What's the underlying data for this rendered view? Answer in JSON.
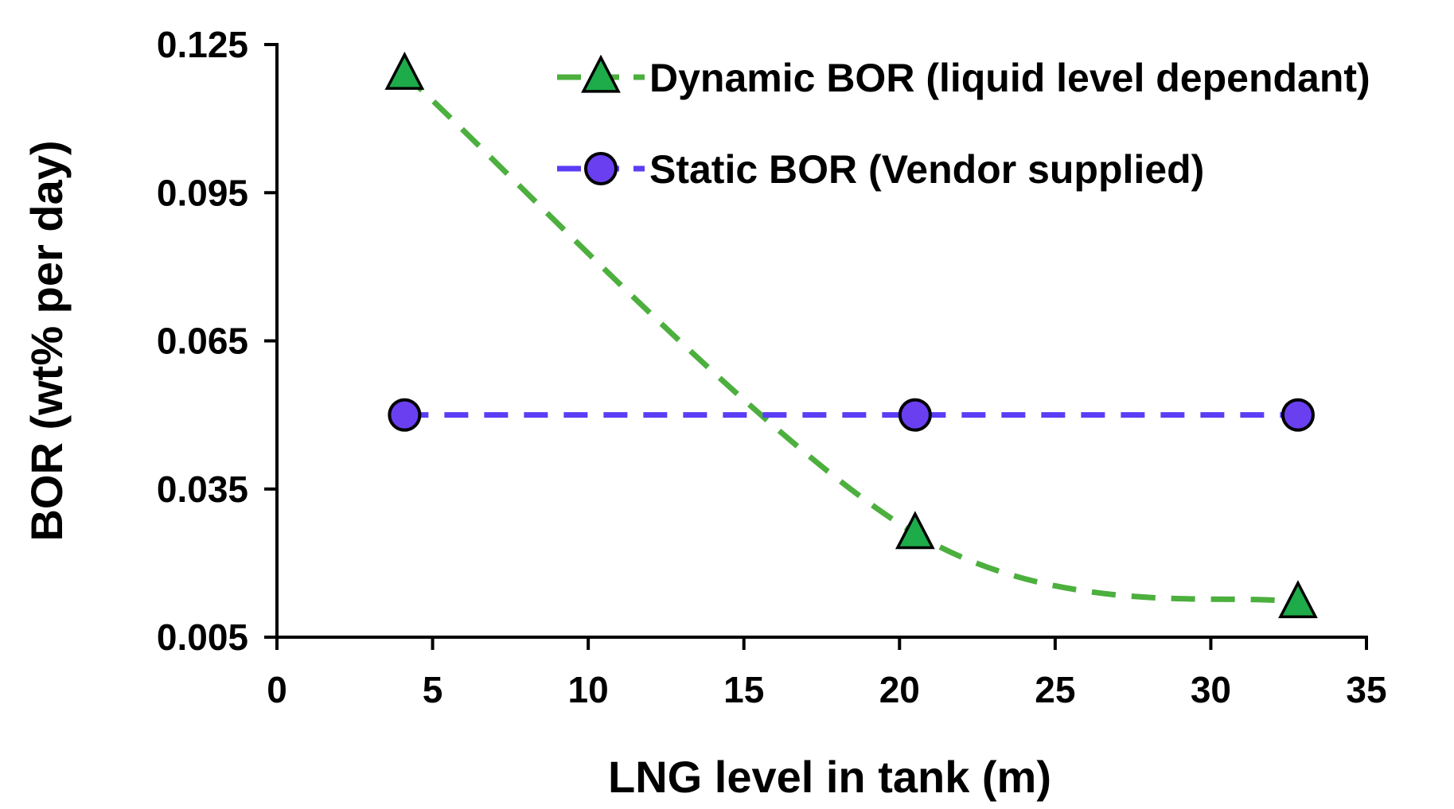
{
  "chart_data": {
    "type": "line",
    "title": "",
    "xlabel": "LNG level in tank (m)",
    "ylabel": "BOR (wt% per day)",
    "xlim": [
      0,
      35
    ],
    "ylim": [
      0.005,
      0.125
    ],
    "xticks": [
      0,
      5,
      10,
      15,
      20,
      25,
      30,
      35
    ],
    "xtick_labels": [
      "0",
      "5",
      "10",
      "15",
      "20",
      "25",
      "30",
      "35"
    ],
    "yticks": [
      0.005,
      0.035,
      0.065,
      0.095,
      0.125
    ],
    "ytick_labels": [
      "0.005",
      "0.035",
      "0.065",
      "0.095",
      "0.125"
    ],
    "grid": false,
    "legend_position": "top-right",
    "series": [
      {
        "name": "Dynamic BOR (liquid level dependant)",
        "marker": "triangle",
        "line_style": "dashed, smoothed",
        "line_color": "#4caf3e",
        "marker_color": "#1eab4a",
        "x": [
          4.1,
          20.5,
          32.8
        ],
        "y": [
          0.119,
          0.026,
          0.012
        ]
      },
      {
        "name": "Static BOR (Vendor supplied)",
        "marker": "circle",
        "line_style": "dashed",
        "line_color": "#5b3df5",
        "marker_color": "#6a3ff0",
        "x": [
          4.1,
          20.5,
          32.8
        ],
        "y": [
          0.05,
          0.05,
          0.05
        ]
      }
    ]
  }
}
